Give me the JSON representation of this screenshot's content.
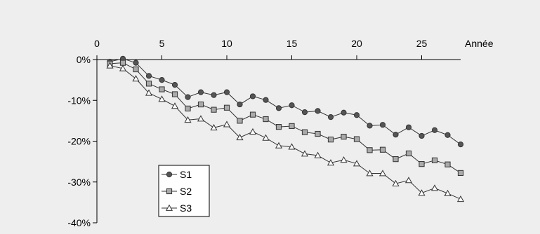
{
  "chart_data": {
    "type": "line",
    "x_axis": {
      "label": "Année",
      "position": "top",
      "range": [
        0,
        28
      ],
      "ticks": [
        0,
        5,
        10,
        15,
        20,
        25
      ],
      "tick_labels": [
        "0",
        "5",
        "10",
        "15",
        "20",
        "25"
      ]
    },
    "y_axis": {
      "label": "",
      "range": [
        -40,
        0
      ],
      "ticks": [
        0,
        -10,
        -20,
        -30,
        -40
      ],
      "tick_labels": [
        "0%",
        "-10%",
        "-20%",
        "-30%",
        "-40%"
      ]
    },
    "grid": false,
    "legend": {
      "placement": "bottom-left",
      "entries": [
        "S1",
        "S2",
        "S3"
      ]
    },
    "x": [
      1,
      2,
      3,
      4,
      5,
      6,
      7,
      8,
      9,
      10,
      11,
      12,
      13,
      14,
      15,
      16,
      17,
      18,
      19,
      20,
      21,
      22,
      23,
      24,
      25,
      26,
      27,
      28
    ],
    "series": [
      {
        "name": "S1",
        "marker": "circle",
        "values": [
          -0.5,
          0.2,
          -0.8,
          -4.0,
          -5.0,
          -6.2,
          -9.2,
          -8.0,
          -8.7,
          -8.0,
          -11.0,
          -9.0,
          -9.9,
          -11.9,
          -11.2,
          -12.9,
          -12.6,
          -14.1,
          -13.0,
          -13.6,
          -16.2,
          -16.0,
          -18.4,
          -16.6,
          -18.7,
          -17.3,
          -18.5,
          -20.8
        ]
      },
      {
        "name": "S2",
        "marker": "square",
        "values": [
          -1.0,
          -0.8,
          -2.4,
          -5.9,
          -7.3,
          -8.5,
          -12.0,
          -11.0,
          -12.3,
          -11.8,
          -15.0,
          -13.5,
          -14.6,
          -16.5,
          -16.3,
          -17.8,
          -18.2,
          -19.6,
          -18.9,
          -19.5,
          -22.2,
          -22.1,
          -24.4,
          -23.0,
          -25.6,
          -24.7,
          -25.7,
          -27.8
        ]
      },
      {
        "name": "S3",
        "marker": "triangle",
        "values": [
          -1.5,
          -2.2,
          -4.7,
          -8.2,
          -9.7,
          -11.4,
          -14.8,
          -14.5,
          -16.7,
          -15.9,
          -19.1,
          -17.7,
          -19.2,
          -21.1,
          -21.4,
          -23.1,
          -23.5,
          -25.3,
          -24.6,
          -25.5,
          -27.9,
          -27.9,
          -30.4,
          -29.6,
          -32.7,
          -31.5,
          -32.8,
          -34.2
        ]
      }
    ]
  }
}
